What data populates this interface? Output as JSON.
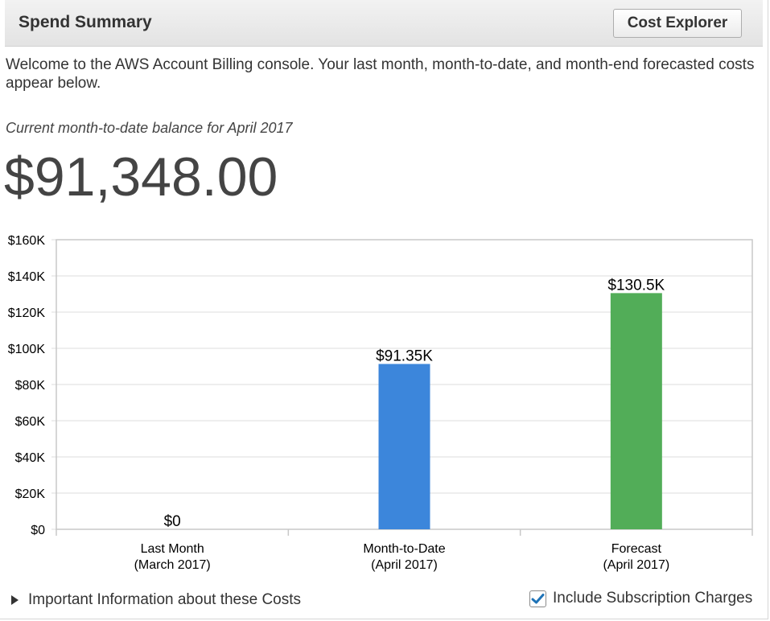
{
  "header": {
    "title": "Spend Summary",
    "cost_explorer_label": "Cost Explorer"
  },
  "welcome_text": "Welcome to the AWS Account Billing console. Your last month, month-to-date, and month-end forecasted costs appear below.",
  "balance": {
    "label": "Current month-to-date balance for April 2017",
    "amount": "$91,348.00"
  },
  "colors": {
    "month_to_date": "#3c86db",
    "forecast": "#52ad58",
    "grid": "#dddddd"
  },
  "chart_data": {
    "type": "bar",
    "categories": [
      [
        "Last Month",
        "(March 2017)"
      ],
      [
        "Month-to-Date",
        "(April 2017)"
      ],
      [
        "Forecast",
        "(April 2017)"
      ]
    ],
    "values": [
      0,
      91350,
      130500
    ],
    "data_labels": [
      "$0",
      "$91.35K",
      "$130.5K"
    ],
    "ylim": [
      0,
      160000
    ],
    "yticks": [
      0,
      20000,
      40000,
      60000,
      80000,
      100000,
      120000,
      140000,
      160000
    ],
    "ytick_labels": [
      "$0",
      "$20K",
      "$40K",
      "$60K",
      "$80K",
      "$100K",
      "$120K",
      "$140K",
      "$160K"
    ],
    "grid": true,
    "title": "",
    "xlabel": "",
    "ylabel": ""
  },
  "footer": {
    "info_label": "Important Information about these Costs",
    "checkbox_label": "Include Subscription Charges",
    "checkbox_checked": true
  }
}
